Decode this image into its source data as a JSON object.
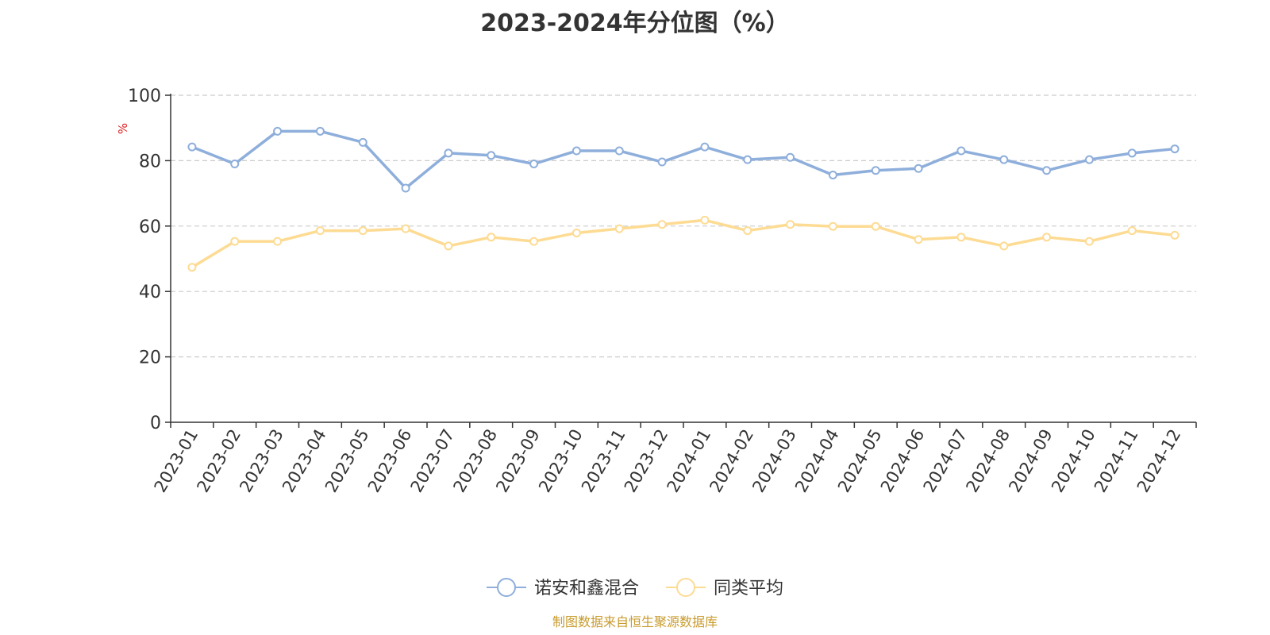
{
  "title": "2023-2024年分位图（%）",
  "source": "制图数据来自恒生聚源数据库",
  "chart_data": {
    "type": "line",
    "title": "2023-2024年分位图（%）",
    "xlabel": "",
    "ylabel": "%",
    "ylim": [
      0,
      100
    ],
    "yticks": [
      0,
      20,
      40,
      60,
      80,
      100
    ],
    "grid": true,
    "legend_position": "bottom-center",
    "categories": [
      "2023-01",
      "2023-02",
      "2023-03",
      "2023-04",
      "2023-05",
      "2023-06",
      "2023-07",
      "2023-08",
      "2023-09",
      "2023-10",
      "2023-11",
      "2023-12",
      "2024-01",
      "2024-02",
      "2024-03",
      "2024-04",
      "2024-05",
      "2024-06",
      "2024-07",
      "2024-08",
      "2024-09",
      "2024-10",
      "2024-11",
      "2024-12"
    ],
    "series": [
      {
        "name": "诺安和鑫混合",
        "color": "#8eaedb",
        "values": [
          84.2,
          79.0,
          89.0,
          89.0,
          85.6,
          71.6,
          82.3,
          81.6,
          79.0,
          83.0,
          83.0,
          79.6,
          84.2,
          80.3,
          81.0,
          75.6,
          77.0,
          77.6,
          83.0,
          80.3,
          77.0,
          80.3,
          82.3,
          83.6
        ]
      },
      {
        "name": "同类平均",
        "color": "#fddb93",
        "values": [
          47.4,
          55.3,
          55.3,
          58.6,
          58.6,
          59.2,
          53.9,
          56.6,
          55.3,
          57.9,
          59.2,
          60.5,
          61.8,
          58.6,
          60.5,
          59.9,
          59.9,
          55.9,
          56.6,
          53.9,
          56.6,
          55.3,
          58.6,
          57.2
        ]
      }
    ]
  }
}
